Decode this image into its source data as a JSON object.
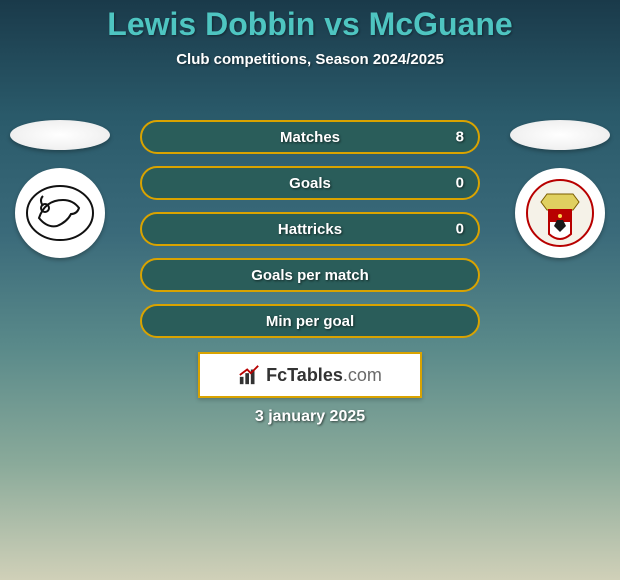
{
  "title": "Lewis Dobbin vs McGuane",
  "subtitle": "Club competitions, Season 2024/2025",
  "date": "3 january 2025",
  "branding": {
    "name": "FcTables",
    "suffix": ".com"
  },
  "row_style": {
    "fill_color": "#2a5d5a",
    "border_color": "#d9a300",
    "label_color": "#ffffff"
  },
  "stats": [
    {
      "label": "Matches",
      "right_value": "8"
    },
    {
      "label": "Goals",
      "right_value": "0"
    },
    {
      "label": "Hattricks",
      "right_value": "0"
    },
    {
      "label": "Goals per match",
      "right_value": ""
    },
    {
      "label": "Min per goal",
      "right_value": ""
    }
  ],
  "players": {
    "left": {
      "club": "derby-county"
    },
    "right": {
      "club": "bristol-city"
    }
  }
}
